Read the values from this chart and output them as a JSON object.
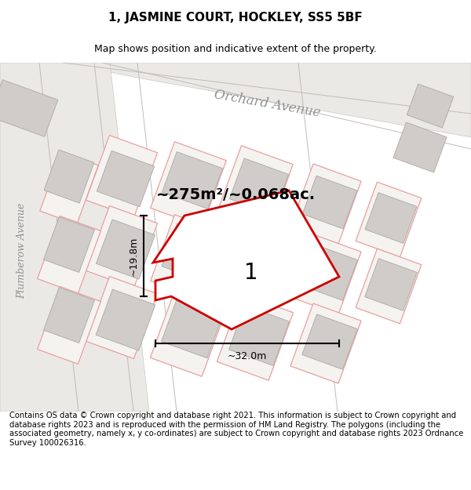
{
  "title": "1, JASMINE COURT, HOCKLEY, SS5 5BF",
  "subtitle": "Map shows position and indicative extent of the property.",
  "footer": "Contains OS data © Crown copyright and database right 2021. This information is subject to Crown copyright and database rights 2023 and is reproduced with the permission of HM Land Registry. The polygons (including the associated geometry, namely x, y co-ordinates) are subject to Crown copyright and database rights 2023 Ordnance Survey 100026316.",
  "area_text": "~275m²/~0.068ac.",
  "dim_width": "~32.0m",
  "dim_height": "~19.8m",
  "red_color": "#cc0000",
  "pink_color": "#e8a0a0",
  "gray_fill": "#d8d4d0",
  "plot_fill": "#f0eeed",
  "map_bg": "#f5f3f0",
  "road_bg": "#e8e6e2",
  "white_bg": "#ffffff"
}
